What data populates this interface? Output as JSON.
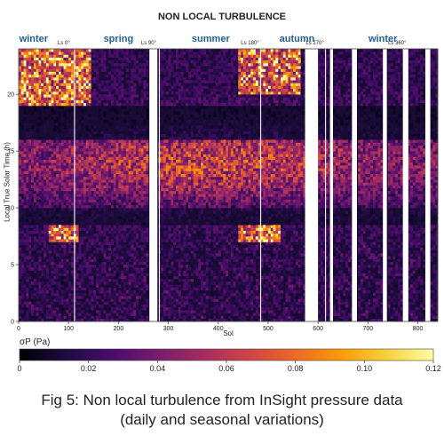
{
  "chart_data": {
    "type": "heatmap",
    "title": "NON LOCAL TURBULENCE",
    "xlabel": "Sol",
    "ylabel": "Local True Solar Time (h)",
    "xlim": [
      0,
      840
    ],
    "ylim": [
      0,
      24
    ],
    "x_ticks": [
      "0",
      "100",
      "200",
      "300",
      "400",
      "500",
      "600",
      "700",
      "800"
    ],
    "y_ticks": [
      "0",
      "5",
      "10",
      "15",
      "20"
    ],
    "seasons": [
      {
        "label": "winter",
        "sol": 30
      },
      {
        "label": "spring",
        "sol": 200
      },
      {
        "label": "summer",
        "sol": 385
      },
      {
        "label": "autumn",
        "sol": 558
      },
      {
        "label": "winter",
        "sol": 730
      }
    ],
    "solar_longitudes": [
      {
        "label": "Ls 0°",
        "sol": 112
      },
      {
        "label": "Ls 90°",
        "sol": 282
      },
      {
        "label": "Ls 180°",
        "sol": 485
      },
      {
        "label": "Ls 270°",
        "sol": 615
      },
      {
        "label": "Ls 360°",
        "sol": 780
      }
    ],
    "data_gaps_sols": [
      [
        262,
        278
      ],
      [
        574,
        600
      ],
      [
        624,
        630
      ],
      [
        668,
        678
      ],
      [
        730,
        738
      ],
      [
        770,
        780
      ],
      [
        815,
        825
      ]
    ],
    "features": [
      {
        "description_hint": "evening band",
        "sol_range": [
          0,
          140
        ],
        "lt_range": [
          19,
          24
        ]
      },
      {
        "description_hint": "evening band",
        "sol_range": [
          440,
          560
        ],
        "lt_range": [
          20,
          24
        ]
      },
      {
        "description_hint": "morning patch",
        "sol_range": [
          60,
          115
        ],
        "lt_range": [
          7,
          8.5
        ]
      },
      {
        "description_hint": "morning patch",
        "sol_range": [
          440,
          520
        ],
        "lt_range": [
          7,
          8.5
        ]
      }
    ],
    "colorbar": {
      "label": "σP (Pa)",
      "range": [
        0,
        0.12
      ],
      "ticks": [
        "0",
        "0.02",
        "0.04",
        "0.06",
        "0.08",
        "0.10",
        "0.12"
      ],
      "colormap": [
        "#000004",
        "#1b0c41",
        "#4a0c6b",
        "#781c6d",
        "#a52c60",
        "#cf4446",
        "#ed6925",
        "#fb9b06",
        "#f7d13d",
        "#fcffa4"
      ]
    }
  },
  "caption": {
    "line1": "Fig 5: Non local turbulence from InSight pressure data",
    "line2": "(daily and seasonal variations)"
  }
}
